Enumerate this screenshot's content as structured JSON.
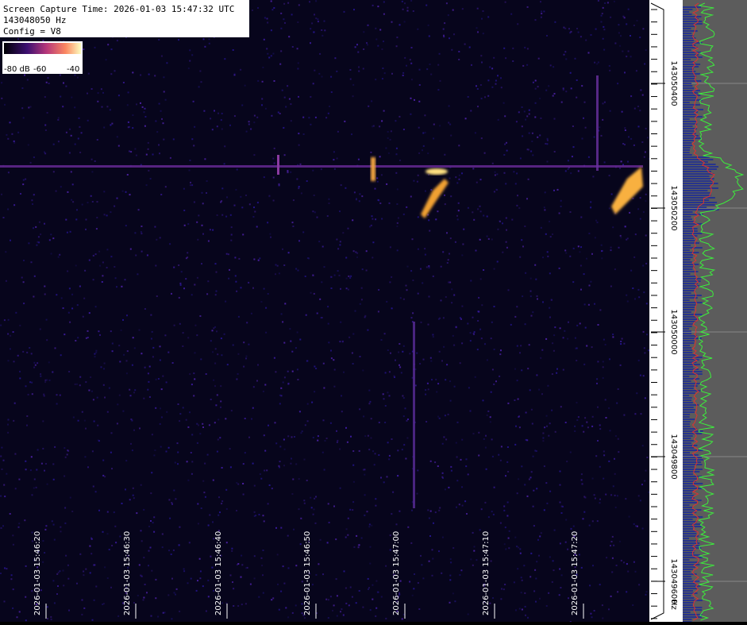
{
  "header": {
    "lines": [
      "Screen Capture Time: 2026-01-03 15:47:32 UTC",
      "143048050 Hz",
      "Config = V8"
    ]
  },
  "colorbar": {
    "labels": [
      "-80 dB",
      "-60",
      "-40"
    ]
  },
  "time_labels": [
    "2026-01-03 15:46:20",
    "2026-01-03 15:46:30",
    "2026-01-03 15:46:40",
    "2026-01-03 15:46:50",
    "2026-01-03 15:47:00",
    "2026-01-03 15:47:10",
    "2026-01-03 15:47:20"
  ],
  "freq_labels": [
    "143050400",
    "143050200",
    "143050000",
    "143049800",
    "143049600"
  ],
  "freq_unit": "Hz"
}
